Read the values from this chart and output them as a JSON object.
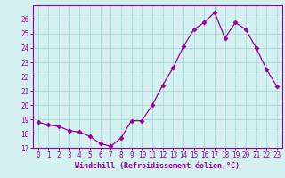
{
  "x": [
    0,
    1,
    2,
    3,
    4,
    5,
    6,
    7,
    8,
    9,
    10,
    11,
    12,
    13,
    14,
    15,
    16,
    17,
    18,
    19,
    20,
    21,
    22,
    23
  ],
  "y": [
    18.8,
    18.6,
    18.5,
    18.2,
    18.1,
    17.8,
    17.3,
    17.1,
    17.7,
    18.9,
    18.9,
    20.0,
    21.4,
    22.6,
    24.1,
    25.3,
    25.8,
    26.5,
    24.7,
    25.8,
    25.3,
    24.0,
    22.5,
    21.3
  ],
  "line_color": "#990099",
  "marker": "D",
  "marker_size": 2.5,
  "background_color": "#d5f0f0",
  "grid_color": "#aadddd",
  "xlabel": "Windchill (Refroidissement éolien,°C)",
  "ylabel": "",
  "xlim": [
    -0.5,
    23.5
  ],
  "ylim": [
    17,
    27
  ],
  "yticks": [
    17,
    18,
    19,
    20,
    21,
    22,
    23,
    24,
    25,
    26
  ],
  "xticks": [
    0,
    1,
    2,
    3,
    4,
    5,
    6,
    7,
    8,
    9,
    10,
    11,
    12,
    13,
    14,
    15,
    16,
    17,
    18,
    19,
    20,
    21,
    22,
    23
  ],
  "tick_color": "#990099",
  "label_color": "#990099",
  "font_family": "monospace",
  "tick_fontsize": 5.5,
  "xlabel_fontsize": 6.0
}
